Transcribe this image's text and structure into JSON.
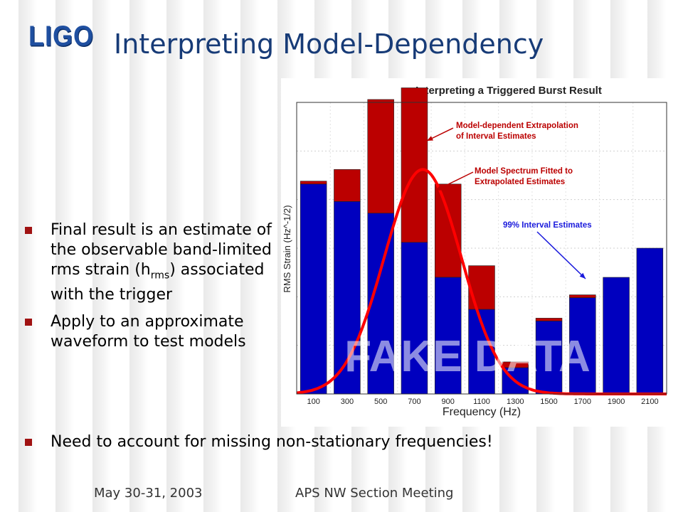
{
  "logo": {
    "text": "LIGO"
  },
  "slide": {
    "title": "Interpreting Model-Dependency"
  },
  "bullets": [
    {
      "pre": "Final result is an estimate of the observable band-limited rms strain (h",
      "sub": "rms",
      "post": ") associated with the trigger"
    },
    {
      "pre": "Apply to an approximate waveform to test models",
      "sub": "",
      "post": ""
    }
  ],
  "bullet_last": "Need to account for missing non-stationary frequencies!",
  "footer": {
    "date": "May 30-31, 2003",
    "meeting": "APS NW Section Meeting"
  },
  "chart_data": {
    "type": "bar",
    "title": "Interpreting a Triggered Burst Result",
    "xlabel": "Frequency (Hz)",
    "ylabel": "RMS Strain (Hz^-1/2)",
    "watermark": "FAKE DATA",
    "ylim": [
      0,
      1.0
    ],
    "categories": [
      "100",
      "300",
      "500",
      "700",
      "900",
      "1100",
      "1300",
      "1500",
      "1700",
      "1900",
      "2100"
    ],
    "series": [
      {
        "values": [
          0.72,
          0.66,
          0.62,
          0.52,
          0.4,
          0.29,
          0.09,
          0.25,
          0.33,
          0.4,
          0.5
        ],
        "color": "#0000bf"
      },
      {
        "values": [
          0.01,
          0.11,
          0.39,
          0.53,
          0.32,
          0.15,
          0.02,
          0.01,
          0.01,
          0.0,
          0.0
        ],
        "color": "#bb0000"
      }
    ],
    "fit_curve": {
      "color": "#ff0000",
      "peak_x": 750,
      "peak_y": 0.77,
      "sigma": 230
    },
    "annotations": [
      {
        "text_lines": [
          "Model-dependent Extrapolation",
          "of Interval Estimates"
        ],
        "color": "#bb0000"
      },
      {
        "text_lines": [
          "Model Spectrum Fitted to",
          "Extrapolated Estimates"
        ],
        "color": "#bb0000"
      },
      {
        "text_lines": [
          "99% Interval Estimates"
        ],
        "color": "#1a1adc"
      }
    ],
    "grid": true
  }
}
